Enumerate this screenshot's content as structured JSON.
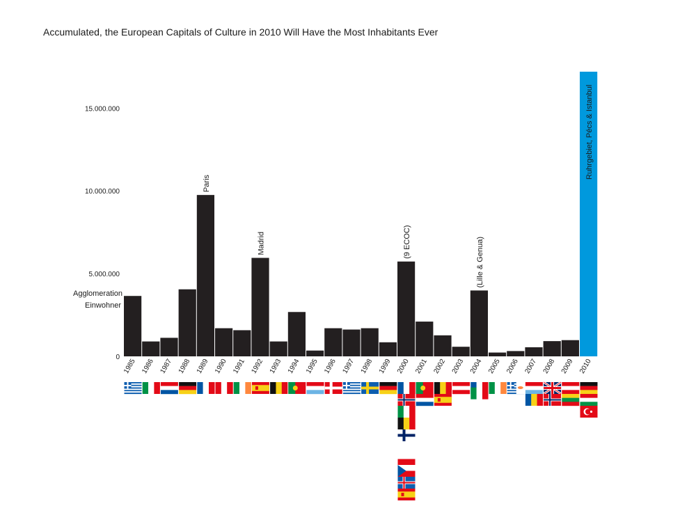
{
  "chart_data": {
    "type": "bar",
    "title": "Accumulated, the European Capitals of Culture in 2010 Will Have the Most Inhabitants Ever",
    "ylabel_lines": [
      "Agglomeration",
      "Einwohner"
    ],
    "y_ticks": [
      0,
      5000000,
      10000000,
      15000000
    ],
    "y_tick_labels": [
      "0",
      "5.000.000",
      "10.000.000",
      "15.000.000"
    ],
    "ylim": [
      0,
      17200000
    ],
    "grid": false,
    "categories": [
      "1985",
      "1986",
      "1987",
      "1988",
      "1989",
      "1990",
      "1991",
      "1992",
      "1993",
      "1994",
      "1995",
      "1996",
      "1997",
      "1998",
      "1999",
      "2000",
      "2001",
      "2002",
      "2003",
      "2004",
      "2005",
      "2006",
      "2007",
      "2008",
      "2009",
      "2010"
    ],
    "values": [
      3650000,
      900000,
      1120000,
      4050000,
      9750000,
      1700000,
      1580000,
      5950000,
      900000,
      2680000,
      350000,
      1700000,
      1620000,
      1700000,
      850000,
      5730000,
      2100000,
      1270000,
      580000,
      3980000,
      230000,
      320000,
      550000,
      920000,
      980000,
      17200000
    ],
    "bar_color": "#231f20",
    "highlight_color": "#0099dd",
    "highlight_category": "2010",
    "annotations": [
      {
        "category": "1989",
        "text": "Paris"
      },
      {
        "category": "1992",
        "text": "Madrid"
      },
      {
        "category": "2000",
        "text": "(9 ECOC)"
      },
      {
        "category": "2004",
        "text": "(Lille & Genua)"
      },
      {
        "category": "2010",
        "text": "Ruhrgebiet, Pécs & Istanbul",
        "color": "#0099dd"
      }
    ]
  },
  "flag_colors": {
    "red": "#e30a17",
    "white": "#ffffff",
    "green": "#009246",
    "blue": "#0055a4",
    "navy": "#002366",
    "yellow": "#f7d117",
    "black": "#111111",
    "orange": "#ff883e",
    "lightblue": "#6cb4e4",
    "greek": "#0d5eaf",
    "cypgreen": "#4e8c3a"
  },
  "flags": [
    {
      "icon": "flag-greece-icon",
      "col": 0,
      "row": 0,
      "kind": "greece"
    },
    {
      "icon": "flag-italy-icon",
      "col": 1,
      "row": 0,
      "kind": "vtri",
      "colors": [
        "green",
        "white",
        "red"
      ]
    },
    {
      "icon": "flag-netherlands-icon",
      "col": 2,
      "row": 0,
      "kind": "htri",
      "colors": [
        "red",
        "white",
        "blue"
      ]
    },
    {
      "icon": "flag-germany-icon",
      "col": 3,
      "row": 0,
      "kind": "htri",
      "colors": [
        "black",
        "red",
        "yellow"
      ]
    },
    {
      "icon": "flag-france-icon",
      "col": 4,
      "row": 0,
      "kind": "vtri",
      "colors": [
        "blue",
        "white",
        "red"
      ]
    },
    {
      "icon": "flag-uk-icon",
      "col": 5,
      "row": 0,
      "kind": "vtri",
      "colors": [
        "red",
        "white",
        "red"
      ]
    },
    {
      "icon": "flag-ireland-icon",
      "col": 6,
      "row": 0,
      "kind": "vtri",
      "colors": [
        "green",
        "white",
        "orange"
      ]
    },
    {
      "icon": "flag-spain-icon",
      "col": 7,
      "row": 0,
      "kind": "spain"
    },
    {
      "icon": "flag-belgium-icon",
      "col": 8,
      "row": 0,
      "kind": "vtri",
      "colors": [
        "black",
        "yellow",
        "red"
      ]
    },
    {
      "icon": "flag-portugal-icon",
      "col": 9,
      "row": 0,
      "kind": "portugal"
    },
    {
      "icon": "flag-luxembourg-icon",
      "col": 10,
      "row": 0,
      "kind": "htri",
      "colors": [
        "red",
        "white",
        "lightblue"
      ]
    },
    {
      "icon": "flag-denmark-icon",
      "col": 11,
      "row": 0,
      "kind": "nordic",
      "colors": [
        "red",
        "white"
      ]
    },
    {
      "icon": "flag-greece-icon",
      "col": 12,
      "row": 0,
      "kind": "greece"
    },
    {
      "icon": "flag-sweden-icon",
      "col": 13,
      "row": 0,
      "kind": "nordic",
      "colors": [
        "greek",
        "yellow"
      ]
    },
    {
      "icon": "flag-germany-icon",
      "col": 14,
      "row": 0,
      "kind": "htri",
      "colors": [
        "black",
        "red",
        "yellow"
      ]
    },
    {
      "icon": "flag-france-icon",
      "col": 15,
      "row": 0,
      "kind": "vtri",
      "colors": [
        "blue",
        "white",
        "red"
      ]
    },
    {
      "icon": "flag-norway-icon",
      "col": 15,
      "row": 1,
      "kind": "nordic2",
      "colors": [
        "red",
        "white",
        "navy"
      ]
    },
    {
      "icon": "flag-italy-icon",
      "col": 15,
      "row": 2,
      "kind": "vtri",
      "colors": [
        "green",
        "white",
        "red"
      ]
    },
    {
      "icon": "flag-belgium-icon",
      "col": 15,
      "row": 3,
      "kind": "vtri",
      "colors": [
        "black",
        "yellow",
        "red"
      ]
    },
    {
      "icon": "flag-finland-icon",
      "col": 15,
      "row": 4,
      "kind": "nordic",
      "colors": [
        "white",
        "navy"
      ]
    },
    {
      "icon": "flag-poland-icon",
      "col": 15,
      "row": 6,
      "kind": "hbi",
      "colors": [
        "white",
        "red"
      ]
    },
    {
      "icon": "flag-czech-icon",
      "col": 15,
      "row": 7,
      "kind": "czech"
    },
    {
      "icon": "flag-iceland-icon",
      "col": 15,
      "row": 8,
      "kind": "nordic2",
      "colors": [
        "greek",
        "white",
        "red"
      ]
    },
    {
      "icon": "flag-spain-icon",
      "col": 15,
      "row": 9,
      "kind": "spain"
    },
    {
      "icon": "flag-portugal-icon",
      "col": 16,
      "row": 0,
      "kind": "portugal"
    },
    {
      "icon": "flag-netherlands-icon",
      "col": 16,
      "row": 1,
      "kind": "htri",
      "colors": [
        "red",
        "white",
        "blue"
      ]
    },
    {
      "icon": "flag-belgium-icon",
      "col": 17,
      "row": 0,
      "kind": "vtri",
      "colors": [
        "black",
        "yellow",
        "red"
      ]
    },
    {
      "icon": "flag-spain-icon",
      "col": 17,
      "row": 1,
      "kind": "spain"
    },
    {
      "icon": "flag-austria-icon",
      "col": 18,
      "row": 0,
      "kind": "htri",
      "colors": [
        "red",
        "white",
        "red"
      ]
    },
    {
      "icon": "flag-france-icon",
      "col": 19,
      "row": 0,
      "kind": "vtri",
      "colors": [
        "blue",
        "white",
        "red"
      ]
    },
    {
      "icon": "flag-italy-icon",
      "col": 19,
      "row": 0.45,
      "kind": "vtri",
      "colors": [
        "green",
        "white",
        "red"
      ]
    },
    {
      "icon": "flag-ireland-icon",
      "col": 20,
      "row": 0,
      "kind": "vtri",
      "colors": [
        "green",
        "white",
        "orange"
      ]
    },
    {
      "icon": "flag-greece-icon",
      "col": 21,
      "row": 0,
      "kind": "greece"
    },
    {
      "icon": "flag-cyprus-icon",
      "col": 21.5,
      "row": 0,
      "kind": "cyprus"
    },
    {
      "icon": "flag-luxembourg-icon",
      "col": 22,
      "row": 0,
      "kind": "htri",
      "colors": [
        "red",
        "white",
        "lightblue"
      ]
    },
    {
      "icon": "flag-romania-icon",
      "col": 22,
      "row": 1,
      "kind": "vtri",
      "colors": [
        "blue",
        "yellow",
        "red"
      ]
    },
    {
      "icon": "flag-uk-icon",
      "col": 23,
      "row": 0,
      "kind": "ukflag"
    },
    {
      "icon": "flag-norway-icon",
      "col": 23,
      "row": 1,
      "kind": "nordic2",
      "colors": [
        "red",
        "white",
        "navy"
      ]
    },
    {
      "icon": "flag-austria-icon",
      "col": 24,
      "row": 0,
      "kind": "htri",
      "colors": [
        "red",
        "white",
        "red"
      ]
    },
    {
      "icon": "flag-lithuania-icon",
      "col": 24,
      "row": 1,
      "kind": "htri",
      "colors": [
        "yellow",
        "green",
        "red"
      ]
    },
    {
      "icon": "flag-germany-icon",
      "col": 25,
      "row": 0,
      "kind": "htri",
      "colors": [
        "black",
        "red",
        "yellow"
      ]
    },
    {
      "icon": "flag-hungary-icon",
      "col": 25,
      "row": 1,
      "kind": "htri",
      "colors": [
        "red",
        "white",
        "green"
      ]
    },
    {
      "icon": "flag-turkey-icon",
      "col": 25,
      "row": 2,
      "kind": "turkey"
    }
  ]
}
